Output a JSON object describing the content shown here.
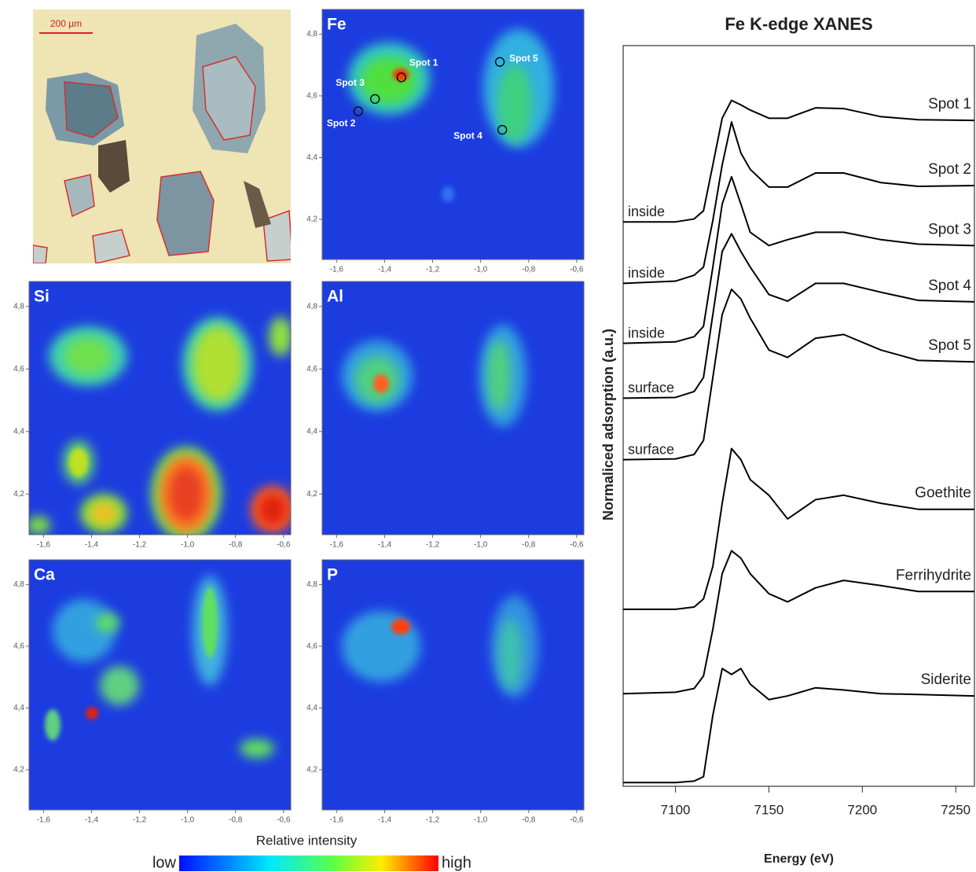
{
  "chart_data": [
    {
      "type": "image",
      "scale_bar": "200 µm"
    },
    {
      "type": "heatmap",
      "label": "Fe",
      "xlim": [
        -1.66,
        -0.57
      ],
      "ylim": [
        4.07,
        4.88
      ],
      "xticks": [
        {
          "value": -1.6,
          "label": "-1,6"
        },
        {
          "value": -1.4,
          "label": "-1,4"
        },
        {
          "value": -1.2,
          "label": "-1,2"
        },
        {
          "value": -1.0,
          "label": "-1,0"
        },
        {
          "value": -0.8,
          "label": "-0,8"
        },
        {
          "value": -0.6,
          "label": "-0,6"
        }
      ],
      "yticks": [
        {
          "value": 4.2,
          "label": "4,2"
        },
        {
          "value": 4.4,
          "label": "4,4"
        },
        {
          "value": 4.6,
          "label": "4,6"
        },
        {
          "value": 4.8,
          "label": "4,8"
        }
      ],
      "spots": [
        {
          "label": "Spot 1",
          "x": -1.33,
          "y": 4.66
        },
        {
          "label": "Spot 2",
          "x": -1.51,
          "y": 4.55
        },
        {
          "label": "Spot 3",
          "x": -1.44,
          "y": 4.59
        },
        {
          "label": "Spot 4",
          "x": -0.91,
          "y": 4.49
        },
        {
          "label": "Spot 5",
          "x": -0.92,
          "y": 4.71
        }
      ]
    },
    {
      "type": "heatmap",
      "label": "Si",
      "xlim": [
        -1.66,
        -0.57
      ],
      "ylim": [
        4.07,
        4.88
      ],
      "xticks": [
        {
          "value": -1.6,
          "label": "-1,6"
        },
        {
          "value": -1.4,
          "label": "-1,4"
        },
        {
          "value": -1.2,
          "label": "-1,2"
        },
        {
          "value": -1.0,
          "label": "-1,0"
        },
        {
          "value": -0.8,
          "label": "-0,8"
        },
        {
          "value": -0.6,
          "label": "-0,6"
        }
      ],
      "yticks": [
        {
          "value": 4.2,
          "label": "4,2"
        },
        {
          "value": 4.4,
          "label": "4,4"
        },
        {
          "value": 4.6,
          "label": "4,6"
        },
        {
          "value": 4.8,
          "label": "4,8"
        }
      ]
    },
    {
      "type": "heatmap",
      "label": "Al",
      "xlim": [
        -1.66,
        -0.57
      ],
      "ylim": [
        4.07,
        4.88
      ],
      "xticks": [
        {
          "value": -1.6,
          "label": "-1,6"
        },
        {
          "value": -1.4,
          "label": "-1,4"
        },
        {
          "value": -1.2,
          "label": "-1,2"
        },
        {
          "value": -1.0,
          "label": "-1,0"
        },
        {
          "value": -0.8,
          "label": "-0,8"
        },
        {
          "value": -0.6,
          "label": "-0,6"
        }
      ],
      "yticks": [
        {
          "value": 4.2,
          "label": "4,2"
        },
        {
          "value": 4.4,
          "label": "4,4"
        },
        {
          "value": 4.6,
          "label": "4,6"
        },
        {
          "value": 4.8,
          "label": "4,8"
        }
      ]
    },
    {
      "type": "heatmap",
      "label": "Ca",
      "xlim": [
        -1.66,
        -0.57
      ],
      "ylim": [
        4.07,
        4.88
      ],
      "xticks": [
        {
          "value": -1.6,
          "label": "-1,6"
        },
        {
          "value": -1.4,
          "label": "-1,4"
        },
        {
          "value": -1.2,
          "label": "-1,2"
        },
        {
          "value": -1.0,
          "label": "-1,0"
        },
        {
          "value": -0.8,
          "label": "-0,8"
        },
        {
          "value": -0.6,
          "label": "-0,6"
        }
      ],
      "yticks": [
        {
          "value": 4.2,
          "label": "4,2"
        },
        {
          "value": 4.4,
          "label": "4,4"
        },
        {
          "value": 4.6,
          "label": "4,6"
        },
        {
          "value": 4.8,
          "label": "4,8"
        }
      ]
    },
    {
      "type": "heatmap",
      "label": "P",
      "xlim": [
        -1.66,
        -0.57
      ],
      "ylim": [
        4.07,
        4.88
      ],
      "xticks": [
        {
          "value": -1.6,
          "label": "-1,6"
        },
        {
          "value": -1.4,
          "label": "-1,4"
        },
        {
          "value": -1.2,
          "label": "-1,2"
        },
        {
          "value": -1.0,
          "label": "-1,0"
        },
        {
          "value": -0.8,
          "label": "-0,8"
        },
        {
          "value": -0.6,
          "label": "-0,6"
        }
      ],
      "yticks": [
        {
          "value": 4.2,
          "label": "4,2"
        },
        {
          "value": 4.4,
          "label": "4,4"
        },
        {
          "value": 4.6,
          "label": "4,6"
        },
        {
          "value": 4.8,
          "label": "4,8"
        }
      ]
    },
    {
      "type": "line",
      "title": "Fe K-edge XANES",
      "xlabel": "Energy (eV)",
      "ylabel": "Normaliced adsorption (a.u.)",
      "x": [
        7072,
        7100,
        7110,
        7115,
        7120,
        7125,
        7130,
        7135,
        7140,
        7150,
        7160,
        7175,
        7190,
        7210,
        7230,
        7260
      ],
      "xlim": [
        7072,
        7260
      ],
      "ylim": [
        0,
        100
      ],
      "xticks": [
        7100,
        7150,
        7200,
        7250
      ],
      "series": [
        {
          "name": "Spot 1",
          "color": "#000000",
          "values": [
            76.2,
            76.2,
            76.6,
            77.7,
            83.9,
            90.2,
            92.6,
            92.0,
            91.3,
            90.2,
            90.2,
            91.6,
            91.5,
            90.4,
            90.0,
            89.9
          ]
        },
        {
          "name": "Spot 2",
          "color": "#000000",
          "values": [
            67.9,
            68.2,
            69.0,
            70.1,
            76.4,
            83.9,
            89.7,
            85.5,
            83.3,
            80.9,
            80.9,
            82.8,
            82.8,
            81.5,
            81.0,
            81.1
          ]
        },
        {
          "name": "Spot 3",
          "color": "#000000",
          "values": [
            59.8,
            60.0,
            60.7,
            62.1,
            70.1,
            78.6,
            82.3,
            78.6,
            74.8,
            73.0,
            73.8,
            74.8,
            74.8,
            73.8,
            73.2,
            73.0
          ]
        },
        {
          "name": "Spot 4",
          "color": "#000000",
          "values": [
            52.4,
            52.5,
            53.3,
            55.2,
            63.7,
            72.2,
            74.6,
            72.2,
            70.1,
            66.4,
            65.5,
            67.9,
            67.9,
            66.7,
            65.6,
            65.4
          ]
        },
        {
          "name": "Spot 5",
          "color": "#000000",
          "values": [
            44.1,
            44.2,
            44.8,
            46.7,
            55.2,
            63.7,
            67.1,
            65.8,
            63.2,
            58.9,
            57.9,
            60.5,
            61.0,
            58.9,
            57.5,
            57.3
          ]
        },
        {
          "name": "Goethite",
          "color": "#000000",
          "values": [
            23.9,
            23.9,
            24.2,
            25.3,
            29.7,
            38.2,
            45.6,
            44.1,
            41.4,
            39.3,
            36.1,
            38.7,
            39.3,
            38.2,
            37.4,
            37.4
          ]
        },
        {
          "name": "Ferrihydrite",
          "color": "#000000",
          "values": [
            12.5,
            12.7,
            13.2,
            14.9,
            21.2,
            28.7,
            31.8,
            30.8,
            28.7,
            26.0,
            24.9,
            26.8,
            27.8,
            27.1,
            26.3,
            26.3
          ]
        },
        {
          "name": "Siderite",
          "color": "#000000",
          "values": [
            0.5,
            0.5,
            0.7,
            1.3,
            9.6,
            15.9,
            15.1,
            15.9,
            13.8,
            11.7,
            12.2,
            13.3,
            13.0,
            12.5,
            12.4,
            12.2
          ]
        }
      ],
      "annotations": [
        "inside",
        "inside",
        "inside",
        "surface",
        "surface"
      ]
    }
  ],
  "colorbar": {
    "title": "Relative intensity",
    "low": "low",
    "high": "high"
  }
}
